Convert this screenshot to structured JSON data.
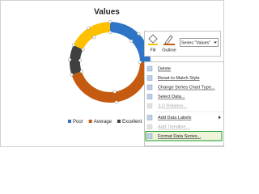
{
  "chart_data": {
    "type": "doughnut",
    "title": "Values",
    "categories": [
      "Poor",
      "Average",
      "Excellent",
      null
    ],
    "values": [
      25,
      45,
      12,
      18
    ],
    "colors": [
      "#2e75c8",
      "#c55a11",
      "#404040",
      "#ffc000"
    ],
    "legend": "bottom"
  },
  "toolbar": {
    "fill": "Fill",
    "outline": "Outline",
    "series": "Series \"Values\""
  },
  "menu": {
    "items": [
      {
        "label": "Delete",
        "disabled": false
      },
      {
        "label": "Reset to Match Style",
        "disabled": false
      },
      {
        "label": "Change Series Chart Type...",
        "disabled": false
      },
      {
        "label": "Select Data...",
        "disabled": false
      },
      {
        "label": "3-D Rotation...",
        "disabled": true
      },
      {
        "label": "Add Data Labels",
        "disabled": false,
        "submenu": true,
        "separator_before": true
      },
      {
        "label": "Add Trendline...",
        "disabled": true
      },
      {
        "label": "Format Data Series...",
        "disabled": false,
        "highlighted": true
      }
    ]
  }
}
